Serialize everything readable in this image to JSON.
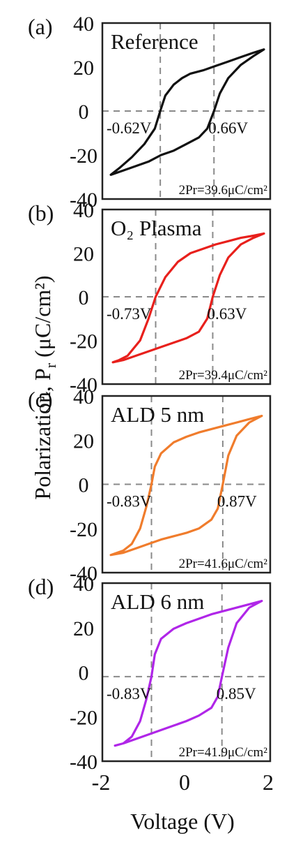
{
  "figure": {
    "y_label": "Polarization, P",
    "y_label_subscript": "r",
    "y_label_unit": "(μC/cm²)",
    "x_label": "Voltage (V)",
    "x_tick_labels": [
      "-2",
      "0",
      "2"
    ]
  },
  "chart_data": [
    {
      "type": "line",
      "panel_label": "(a)",
      "title": "Reference",
      "color": "#111111",
      "xlim": [
        -2,
        2
      ],
      "ylim": [
        -40,
        40
      ],
      "yticks": [
        40,
        20,
        0,
        -20,
        -40
      ],
      "ytick_labels": [
        "40",
        "20",
        "0",
        "-20",
        "-40"
      ],
      "vlines": [
        -0.62,
        0.66
      ],
      "hline": 0,
      "annotations": {
        "ec_neg": "-0.62V",
        "ec_pos": "0.66V",
        "pr": "2Pr=39.6μC/cm²"
      },
      "branches": {
        "lower_x": [
          -1.8,
          -1.5,
          -1.2,
          -0.9,
          -0.6,
          -0.3,
          0.0,
          0.3,
          0.5,
          0.66,
          0.8,
          1.0,
          1.3,
          1.6,
          1.85
        ],
        "lower_y": [
          -29,
          -27,
          -25,
          -23,
          -20,
          -18,
          -15,
          -12,
          -8,
          0,
          8,
          15,
          21,
          25,
          28
        ],
        "upper_x": [
          1.85,
          1.6,
          1.3,
          1.0,
          0.7,
          0.4,
          0.1,
          -0.1,
          -0.3,
          -0.5,
          -0.62,
          -0.75,
          -1.0,
          -1.3,
          -1.6,
          -1.8
        ],
        "upper_y": [
          28,
          26.5,
          24.5,
          22.5,
          20.5,
          18.5,
          17,
          15,
          12,
          7,
          0,
          -8,
          -15,
          -21,
          -26,
          -29
        ]
      }
    },
    {
      "type": "line",
      "panel_label": "(b)",
      "title": "O₂ Plasma",
      "color": "#e8201c",
      "xlim": [
        -2,
        2
      ],
      "ylim": [
        -40,
        40
      ],
      "yticks": [
        40,
        20,
        0,
        -20,
        -40
      ],
      "ytick_labels": [
        "40",
        "20",
        "0",
        "-20",
        "-40"
      ],
      "vlines": [
        -0.73,
        0.63
      ],
      "hline": 0,
      "annotations": {
        "ec_neg": "-0.73V",
        "ec_pos": "0.63V",
        "pr": "2Pr=39.4μC/cm²"
      },
      "branches": {
        "lower_x": [
          -1.75,
          -1.5,
          -1.2,
          -0.9,
          -0.6,
          -0.3,
          0.0,
          0.3,
          0.5,
          0.63,
          0.8,
          1.0,
          1.3,
          1.6,
          1.85
        ],
        "lower_y": [
          -30,
          -29,
          -27,
          -25,
          -23,
          -21,
          -19,
          -16,
          -10,
          0,
          10,
          18,
          24,
          27,
          29
        ],
        "upper_x": [
          1.85,
          1.6,
          1.3,
          1.0,
          0.7,
          0.4,
          0.1,
          -0.2,
          -0.5,
          -0.73,
          -0.9,
          -1.1,
          -1.4,
          -1.6,
          -1.75
        ],
        "upper_y": [
          29,
          28,
          27,
          25.5,
          24,
          22,
          20,
          16,
          9,
          0,
          -10,
          -20,
          -27,
          -29,
          -30
        ]
      }
    },
    {
      "type": "line",
      "panel_label": "(c)",
      "title": "ALD 5 nm",
      "color": "#f07c2c",
      "xlim": [
        -2,
        2
      ],
      "ylim": [
        -40,
        40
      ],
      "yticks": [
        40,
        20,
        0,
        -20,
        -40
      ],
      "ytick_labels": [
        "40",
        "20",
        "0",
        "-20",
        "-40"
      ],
      "vlines": [
        -0.83,
        0.87
      ],
      "hline": 0,
      "annotations": {
        "ec_neg": "-0.83V",
        "ec_pos": "0.87V",
        "pr": "2Pr=41.6μC/cm²"
      },
      "branches": {
        "lower_x": [
          -1.8,
          -1.5,
          -1.2,
          -0.9,
          -0.6,
          -0.3,
          0.0,
          0.3,
          0.6,
          0.75,
          0.87,
          1.0,
          1.2,
          1.5,
          1.8
        ],
        "lower_y": [
          -32,
          -31,
          -29,
          -27,
          -25,
          -23.5,
          -22,
          -20,
          -16,
          -11,
          0,
          13,
          22,
          28,
          31
        ],
        "upper_x": [
          1.8,
          1.5,
          1.2,
          0.9,
          0.6,
          0.3,
          0.0,
          -0.3,
          -0.6,
          -0.75,
          -0.83,
          -0.95,
          -1.1,
          -1.3,
          -1.5,
          -1.8
        ],
        "upper_y": [
          31,
          29.5,
          28,
          26.5,
          25,
          23.5,
          21.5,
          19,
          14,
          8,
          0,
          -10,
          -20,
          -27,
          -30,
          -32
        ]
      }
    },
    {
      "type": "line",
      "panel_label": "(d)",
      "title": "ALD 6 nm",
      "color": "#b026e8",
      "xlim": [
        -2,
        2
      ],
      "ylim": [
        -40,
        40
      ],
      "yticks": [
        40,
        20,
        0,
        -20,
        -40
      ],
      "ytick_labels": [
        "40",
        "20",
        "0",
        "-20",
        "-40"
      ],
      "vlines": [
        -0.83,
        0.85
      ],
      "hline": -2,
      "annotations": {
        "ec_neg": "-0.83V",
        "ec_pos": "0.85V",
        "pr": "2Pr=41.9μC/cm²"
      },
      "branches": {
        "lower_x": [
          -1.7,
          -1.5,
          -1.2,
          -0.9,
          -0.6,
          -0.3,
          0.0,
          0.3,
          0.6,
          0.75,
          0.85,
          1.0,
          1.2,
          1.5,
          1.8
        ],
        "lower_y": [
          -33,
          -32,
          -30,
          -28,
          -26,
          -24,
          -22,
          -19.5,
          -16,
          -11,
          -2,
          11,
          22,
          29,
          32
        ],
        "upper_x": [
          1.8,
          1.5,
          1.2,
          0.9,
          0.6,
          0.3,
          0.0,
          -0.3,
          -0.6,
          -0.75,
          -0.83,
          -0.95,
          -1.1,
          -1.3,
          -1.5,
          -1.7
        ],
        "upper_y": [
          32,
          30.5,
          29,
          27.5,
          26,
          24,
          22,
          19.5,
          15,
          8,
          -2,
          -12,
          -22,
          -29,
          -32,
          -33
        ]
      }
    }
  ]
}
